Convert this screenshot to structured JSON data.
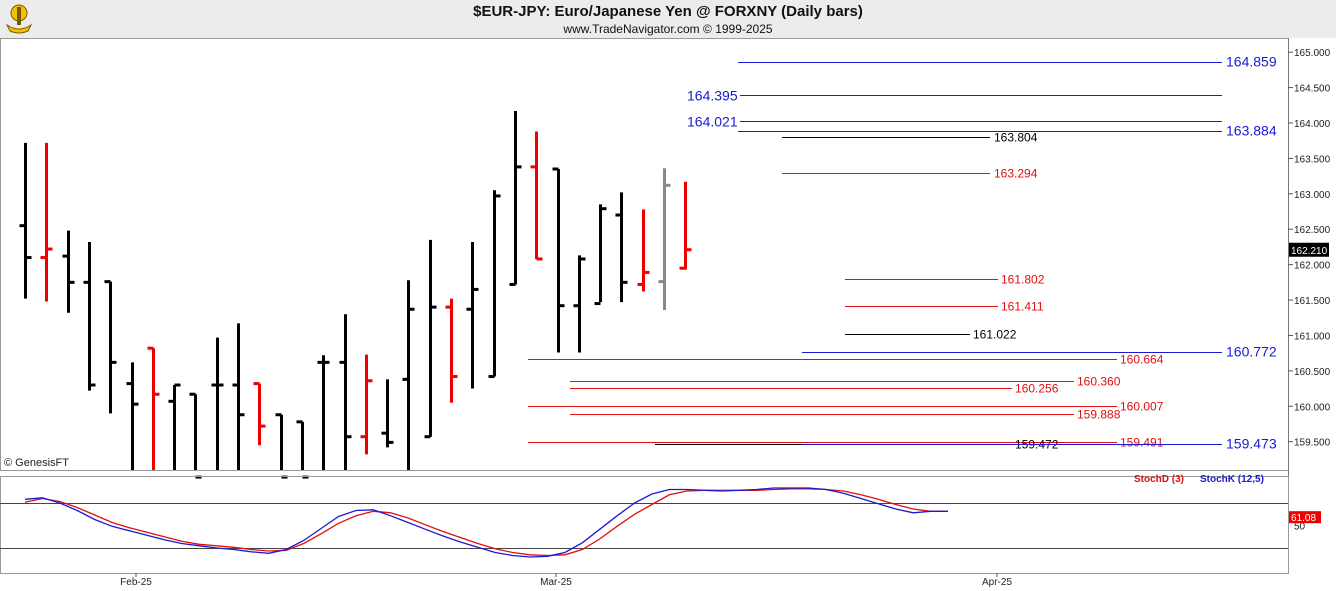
{
  "header": {
    "title": "$EUR-JPY:  Euro/Japanese Yen @ FORXNY  (Daily bars)",
    "subtitle": "www.TradeNavigator.com © 1999-2025"
  },
  "credit": "© GenesisFT",
  "colors": {
    "up_bar": "#000000",
    "down_bar": "#ee0000",
    "current_bar": "#888888",
    "blue_level": "#1a1ad6",
    "red_level": "#e01010",
    "black_level": "#000000",
    "stoch_k": "#1a1ad6",
    "stoch_d": "#e01010",
    "last_price_bg": "#000000",
    "stoch_last_bg": "#ee0000"
  },
  "chart_data": [
    {
      "type": "ohlc",
      "title": "$EUR-JPY:  Euro/Japanese Yen @ FORXNY  (Daily bars)",
      "ylim": [
        159.1,
        165.2
      ],
      "y_ticks": [
        "165.000",
        "164.500",
        "164.000",
        "163.500",
        "163.000",
        "162.500",
        "162.000",
        "161.500",
        "161.000",
        "160.500",
        "160.000",
        "159.500"
      ],
      "x_labels": [
        "Feb-25",
        "Mar-25",
        "Apr-25"
      ],
      "last_price": "162.210",
      "bars": [
        {
          "o": 162.55,
          "h": 163.72,
          "l": 161.52,
          "c": 162.1,
          "dir": "up"
        },
        {
          "o": 162.1,
          "h": 163.72,
          "l": 161.48,
          "c": 162.22,
          "dir": "down"
        },
        {
          "o": 162.12,
          "h": 162.48,
          "l": 161.32,
          "c": 161.75,
          "dir": "up"
        },
        {
          "o": 161.75,
          "h": 162.32,
          "l": 160.22,
          "c": 160.3,
          "dir": "up"
        },
        {
          "o": 161.76,
          "h": 161.76,
          "l": 159.9,
          "c": 160.62,
          "dir": "up"
        },
        {
          "o": 160.32,
          "h": 160.62,
          "l": 159.0,
          "c": 160.03,
          "dir": "up"
        },
        {
          "o": 160.82,
          "h": 160.82,
          "l": 159.0,
          "c": 160.17,
          "dir": "down"
        },
        {
          "o": 160.07,
          "h": 160.3,
          "l": 159.0,
          "c": 160.3,
          "dir": "up"
        },
        {
          "o": 160.17,
          "h": 160.17,
          "l": 159.0,
          "c": 159.0,
          "dir": "up"
        },
        {
          "o": 160.3,
          "h": 160.97,
          "l": 159.0,
          "c": 160.3,
          "dir": "up"
        },
        {
          "o": 160.3,
          "h": 161.17,
          "l": 159.0,
          "c": 159.88,
          "dir": "up"
        },
        {
          "o": 160.32,
          "h": 160.32,
          "l": 159.45,
          "c": 159.72,
          "dir": "down"
        },
        {
          "o": 159.88,
          "h": 159.88,
          "l": 159.0,
          "c": 159.0,
          "dir": "up"
        },
        {
          "o": 159.78,
          "h": 159.78,
          "l": 159.0,
          "c": 159.0,
          "dir": "up"
        },
        {
          "o": 160.62,
          "h": 160.72,
          "l": 159.0,
          "c": 160.62,
          "dir": "up"
        },
        {
          "o": 160.62,
          "h": 161.3,
          "l": 159.0,
          "c": 159.57,
          "dir": "up"
        },
        {
          "o": 159.57,
          "h": 160.73,
          "l": 159.32,
          "c": 160.36,
          "dir": "down"
        },
        {
          "o": 159.62,
          "h": 160.38,
          "l": 159.42,
          "c": 159.49,
          "dir": "up"
        },
        {
          "o": 160.38,
          "h": 161.78,
          "l": 159.0,
          "c": 161.37,
          "dir": "up"
        },
        {
          "o": 159.57,
          "h": 162.35,
          "l": 159.57,
          "c": 161.4,
          "dir": "up"
        },
        {
          "o": 161.4,
          "h": 161.52,
          "l": 160.05,
          "c": 160.42,
          "dir": "down"
        },
        {
          "o": 161.37,
          "h": 162.32,
          "l": 160.25,
          "c": 161.65,
          "dir": "up"
        },
        {
          "o": 160.42,
          "h": 163.05,
          "l": 160.42,
          "c": 162.97,
          "dir": "up"
        },
        {
          "o": 161.72,
          "h": 164.17,
          "l": 161.72,
          "c": 163.38,
          "dir": "up"
        },
        {
          "o": 163.38,
          "h": 163.88,
          "l": 162.08,
          "c": 162.08,
          "dir": "down"
        },
        {
          "o": 163.35,
          "h": 163.35,
          "l": 160.76,
          "c": 161.42,
          "dir": "up"
        },
        {
          "o": 161.42,
          "h": 162.13,
          "l": 160.76,
          "c": 162.08,
          "dir": "up"
        },
        {
          "o": 161.45,
          "h": 162.85,
          "l": 161.47,
          "c": 162.79,
          "dir": "up"
        },
        {
          "o": 162.7,
          "h": 163.02,
          "l": 161.47,
          "c": 161.75,
          "dir": "up"
        },
        {
          "o": 161.72,
          "h": 162.78,
          "l": 161.62,
          "c": 161.89,
          "dir": "down"
        },
        {
          "o": 161.76,
          "h": 163.36,
          "l": 161.36,
          "c": 163.12,
          "dir": "current"
        },
        {
          "o": 161.95,
          "h": 163.17,
          "l": 161.93,
          "c": 162.21,
          "dir": "down"
        }
      ],
      "levels": [
        {
          "label": "164.859",
          "value": 164.859,
          "color": "blue"
        },
        {
          "label": "164.395",
          "value": 164.395,
          "color": "blue"
        },
        {
          "label": "164.021",
          "value": 164.021,
          "color": "blue"
        },
        {
          "label": "163.884",
          "value": 163.884,
          "color": "blue"
        },
        {
          "label": "163.804",
          "value": 163.804,
          "color": "black"
        },
        {
          "label": "163.294",
          "value": 163.294,
          "color": "red"
        },
        {
          "label": "161.802",
          "value": 161.802,
          "color": "red"
        },
        {
          "label": "161.411",
          "value": 161.411,
          "color": "red"
        },
        {
          "label": "161.022",
          "value": 161.022,
          "color": "black"
        },
        {
          "label": "160.772",
          "value": 160.772,
          "color": "blue"
        },
        {
          "label": "160.664",
          "value": 160.664,
          "color": "red"
        },
        {
          "label": "160.360",
          "value": 160.36,
          "color": "red"
        },
        {
          "label": "160.256",
          "value": 160.256,
          "color": "red"
        },
        {
          "label": "160.007",
          "value": 160.007,
          "color": "red"
        },
        {
          "label": "159.888",
          "value": 159.888,
          "color": "red"
        },
        {
          "label": "159.491",
          "value": 159.491,
          "color": "red"
        },
        {
          "label": "159.472",
          "value": 159.472,
          "color": "black"
        },
        {
          "label": "159.473",
          "value": 159.473,
          "color": "blue"
        }
      ]
    },
    {
      "type": "line",
      "series": [
        {
          "name": "StochD (3)",
          "color": "red",
          "values": [
            81,
            86,
            82,
            74,
            64,
            54,
            47,
            41,
            35,
            29,
            25,
            23,
            21,
            18,
            16,
            17,
            26,
            39,
            53,
            63,
            69,
            67,
            60,
            51,
            42,
            34,
            26,
            19,
            14,
            11,
            10,
            11,
            18,
            32,
            49,
            65,
            78,
            91,
            96,
            97,
            97,
            97,
            97,
            98,
            99,
            99,
            98,
            96,
            91,
            85,
            78,
            72,
            69,
            69
          ]
        },
        {
          "name": "StochK (12,5)",
          "color": "blue",
          "values": [
            85,
            87,
            80,
            70,
            58,
            49,
            43,
            37,
            31,
            26,
            23,
            20,
            18,
            15,
            13,
            18,
            30,
            46,
            62,
            70,
            71,
            63,
            54,
            45,
            36,
            28,
            21,
            14,
            10,
            8,
            9,
            14,
            27,
            45,
            63,
            80,
            92,
            98,
            98,
            97,
            96,
            97,
            98,
            101,
            101,
            100,
            98,
            93,
            86,
            79,
            72,
            67,
            69,
            69
          ]
        }
      ],
      "ylim": [
        0,
        100
      ],
      "y_ticks": [
        "50"
      ],
      "reference_lines": [
        20,
        80
      ],
      "last_value": "61.08"
    }
  ]
}
